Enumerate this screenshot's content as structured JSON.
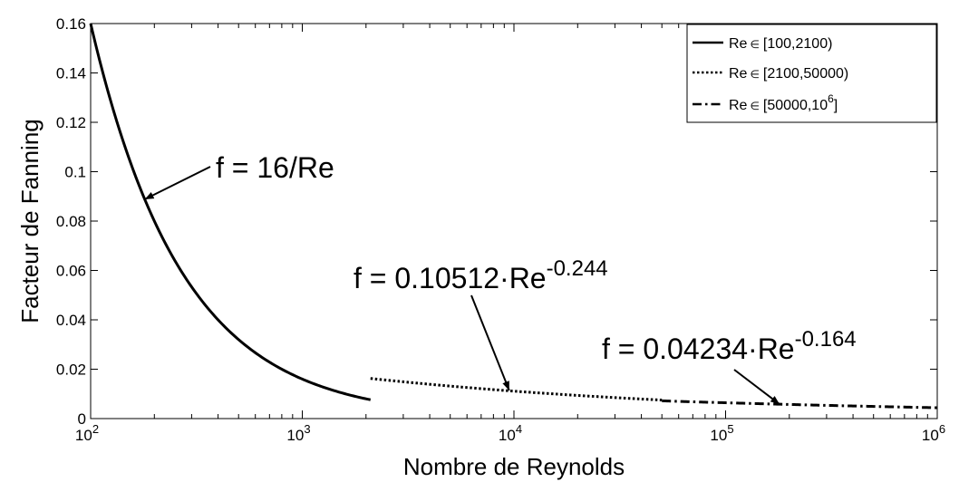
{
  "chart_data": {
    "type": "line",
    "title": "",
    "xlabel": "Nombre de Reynolds",
    "ylabel": "Facteur de Fanning",
    "x_scale": "log",
    "xlim": [
      100,
      1000000
    ],
    "ylim": [
      0,
      0.16
    ],
    "grid": false,
    "x_ticks": [
      {
        "value": 100,
        "base": "10",
        "exp": "2"
      },
      {
        "value": 1000,
        "base": "10",
        "exp": "3"
      },
      {
        "value": 10000,
        "base": "10",
        "exp": "4"
      },
      {
        "value": 100000,
        "base": "10",
        "exp": "5"
      },
      {
        "value": 1000000,
        "base": "10",
        "exp": "6"
      }
    ],
    "y_ticks": [
      {
        "value": 0,
        "label": "0"
      },
      {
        "value": 0.02,
        "label": "0.02"
      },
      {
        "value": 0.04,
        "label": "0.04"
      },
      {
        "value": 0.06,
        "label": "0.06"
      },
      {
        "value": 0.08,
        "label": "0.08"
      },
      {
        "value": 0.1,
        "label": "0.1"
      },
      {
        "value": 0.12,
        "label": "0.12"
      },
      {
        "value": 0.14,
        "label": "0.14"
      },
      {
        "value": 0.16,
        "label": "0.16"
      }
    ],
    "legend_position": "top-right",
    "series": [
      {
        "name_main": "Re",
        "name_symbol": "∈",
        "name_range": "[100,2100)",
        "style": "solid",
        "formula": {
          "a": 16,
          "b": -1
        },
        "domain": [
          100,
          2100
        ]
      },
      {
        "name_main": "Re",
        "name_symbol": "∈",
        "name_range": "[2100,50000)",
        "style": "dotted",
        "formula": {
          "a": 0.10512,
          "b": -0.244
        },
        "domain": [
          2100,
          50000
        ]
      },
      {
        "name_main": "Re",
        "name_symbol": "∈",
        "name_range_prefix": "[50000,10",
        "name_range_exp": "6",
        "name_range_suffix": "]",
        "style": "dashdot",
        "formula": {
          "a": 0.04234,
          "b": -0.164
        },
        "domain": [
          50000,
          1000000
        ]
      }
    ],
    "annotations": [
      {
        "text": "f = 16/Re",
        "arrow_to": {
          "x": 180,
          "y": 0.0888
        }
      },
      {
        "base": "f = 0.10512·Re",
        "exp": "-0.244",
        "arrow_to": {
          "x": 9500,
          "y": 0.0114
        }
      },
      {
        "base": "f = 0.04234·Re",
        "exp": "-0.164",
        "arrow_to": {
          "x": 180000,
          "y": 0.0058
        }
      }
    ]
  }
}
